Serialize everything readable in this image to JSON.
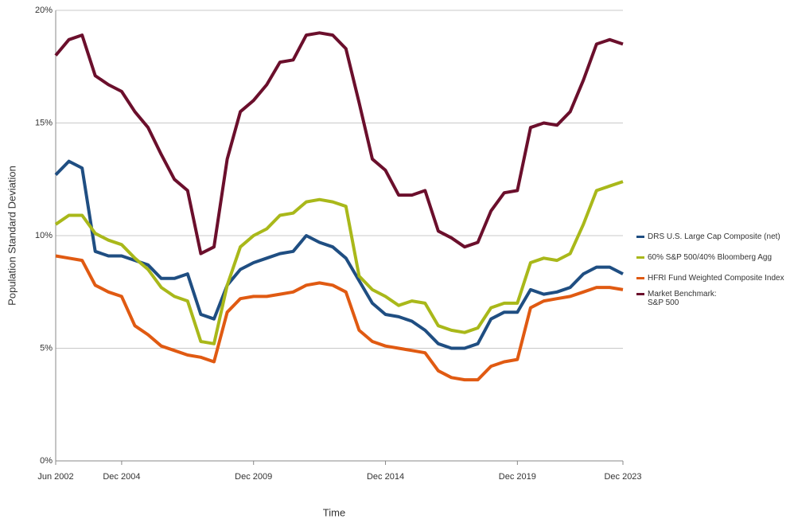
{
  "chart_data": {
    "type": "line",
    "x_label": "Time",
    "y_label": "Population Standard Deviation",
    "x": [
      "2002-06",
      "2002-12",
      "2003-06",
      "2003-12",
      "2004-06",
      "2004-12",
      "2005-06",
      "2005-12",
      "2006-06",
      "2006-12",
      "2007-06",
      "2007-12",
      "2008-06",
      "2008-12",
      "2009-06",
      "2009-12",
      "2010-06",
      "2010-12",
      "2011-06",
      "2011-12",
      "2012-06",
      "2012-12",
      "2013-06",
      "2013-12",
      "2014-06",
      "2014-12",
      "2015-06",
      "2015-12",
      "2016-06",
      "2016-12",
      "2017-06",
      "2017-12",
      "2018-06",
      "2018-12",
      "2019-06",
      "2019-12",
      "2020-06",
      "2020-12",
      "2021-06",
      "2021-12",
      "2022-06",
      "2022-12",
      "2023-06",
      "2023-12"
    ],
    "xlim": [
      "2002-06",
      "2023-12"
    ],
    "xticks": [
      {
        "value": "2002-06",
        "label": "Jun 2002"
      },
      {
        "value": "2004-12",
        "label": "Dec 2004"
      },
      {
        "value": "2009-12",
        "label": "Dec 2009"
      },
      {
        "value": "2014-12",
        "label": "Dec 2014"
      },
      {
        "value": "2019-12",
        "label": "Dec 2019"
      },
      {
        "value": "2023-12",
        "label": "Dec 2023"
      }
    ],
    "ylim": [
      0,
      20
    ],
    "yticks": [
      {
        "value": 0,
        "label": "0%"
      },
      {
        "value": 5,
        "label": "5%"
      },
      {
        "value": 10,
        "label": "10%"
      },
      {
        "value": 15,
        "label": "15%"
      },
      {
        "value": 20,
        "label": "20%"
      }
    ],
    "grid": true,
    "legend": "right",
    "series": [
      {
        "name": "DRS U.S. Large Cap Composite (net)",
        "color": "#1f4e82",
        "values": [
          12.7,
          13.3,
          13.0,
          9.3,
          9.1,
          9.1,
          8.9,
          8.7,
          8.1,
          8.1,
          8.3,
          6.5,
          6.3,
          7.8,
          8.5,
          8.8,
          9.0,
          9.2,
          9.3,
          10.0,
          9.7,
          9.5,
          9.0,
          8.0,
          7.0,
          6.5,
          6.4,
          6.2,
          5.8,
          5.2,
          5.0,
          5.0,
          5.2,
          6.3,
          6.6,
          6.6,
          7.6,
          7.4,
          7.5,
          7.7,
          8.3,
          8.6,
          8.6,
          8.3
        ]
      },
      {
        "name": "60% S&P 500/40% Bloomberg Agg",
        "color": "#a9b81a",
        "values": [
          10.5,
          10.9,
          10.9,
          10.1,
          9.8,
          9.6,
          9.0,
          8.5,
          7.7,
          7.3,
          7.1,
          5.3,
          5.2,
          7.8,
          9.5,
          10.0,
          10.3,
          10.9,
          11.0,
          11.5,
          11.6,
          11.5,
          11.3,
          8.2,
          7.6,
          7.3,
          6.9,
          7.1,
          7.0,
          6.0,
          5.8,
          5.7,
          5.9,
          6.8,
          7.0,
          7.0,
          8.8,
          9.0,
          8.9,
          9.2,
          10.5,
          12.0,
          12.2,
          12.4
        ]
      },
      {
        "name": "HFRI Fund Weighted Composite Index",
        "color": "#e05a12",
        "values": [
          9.1,
          9.0,
          8.9,
          7.8,
          7.5,
          7.3,
          6.0,
          5.6,
          5.1,
          4.9,
          4.7,
          4.6,
          4.4,
          6.6,
          7.2,
          7.3,
          7.3,
          7.4,
          7.5,
          7.8,
          7.9,
          7.8,
          7.5,
          5.8,
          5.3,
          5.1,
          5.0,
          4.9,
          4.8,
          4.0,
          3.7,
          3.6,
          3.6,
          4.2,
          4.4,
          4.5,
          6.8,
          7.1,
          7.2,
          7.3,
          7.5,
          7.7,
          7.7,
          7.6
        ]
      },
      {
        "name": "Market Benchmark:\nS&P 500",
        "color": "#6b0f2c",
        "values": [
          18.0,
          18.7,
          18.9,
          17.1,
          16.7,
          16.4,
          15.5,
          14.8,
          13.6,
          12.5,
          12.0,
          9.2,
          9.5,
          13.4,
          15.5,
          16.0,
          16.7,
          17.7,
          17.8,
          18.9,
          19.0,
          18.9,
          18.3,
          15.9,
          13.4,
          12.9,
          11.8,
          11.8,
          12.0,
          10.2,
          9.9,
          9.5,
          9.7,
          11.1,
          11.9,
          12.0,
          14.8,
          15.0,
          14.9,
          15.5,
          16.9,
          18.5,
          18.7,
          18.5
        ]
      }
    ]
  }
}
